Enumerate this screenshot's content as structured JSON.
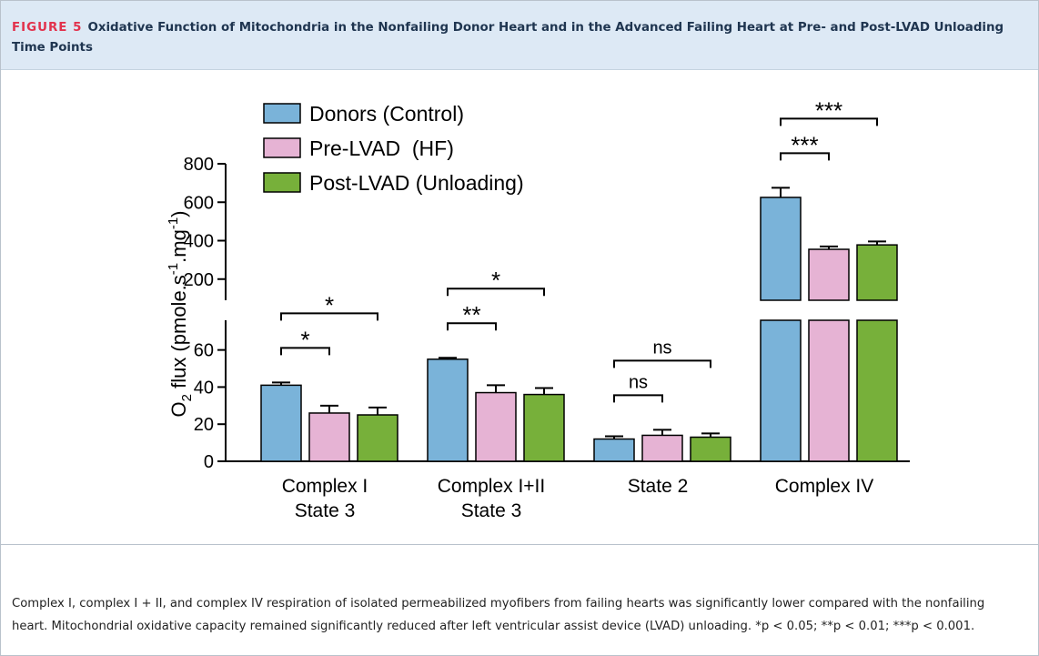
{
  "header": {
    "figure_label": "FIGURE 5",
    "title": "Oxidative Function of Mitochondria in the Nonfailing Donor Heart and in the Advanced Failing Heart at Pre- and Post-LVAD Unloading Time Points"
  },
  "chart_data": {
    "type": "bar",
    "ylabel": [
      "O",
      "2",
      " flux (pmole.s",
      "-1",
      ".mg",
      "-1",
      ")"
    ],
    "categories": [
      [
        "Complex I",
        "State 3"
      ],
      [
        "Complex I+II",
        "State 3"
      ],
      [
        "State 2"
      ],
      [
        "Complex IV"
      ]
    ],
    "series": [
      {
        "name": "Donors (Control)",
        "color": "#7ab3d9",
        "values": [
          41,
          55,
          12,
          625
        ],
        "errors": [
          1.5,
          0.8,
          1.5,
          50
        ]
      },
      {
        "name": "Pre-LVAD  (HF)",
        "color": "#e6b3d4",
        "values": [
          26,
          37,
          14,
          355
        ],
        "errors": [
          4,
          4,
          3,
          15
        ]
      },
      {
        "name": "Post-LVAD (Unloading)",
        "color": "#77b03a",
        "values": [
          25,
          36,
          13,
          378
        ],
        "errors": [
          4,
          3.5,
          2,
          18
        ]
      }
    ],
    "axis_segments": [
      {
        "ylim": [
          0,
          76
        ],
        "yticks": [
          0,
          20,
          40,
          60
        ]
      },
      {
        "ylim": [
          90,
          800
        ],
        "yticks": [
          200,
          400,
          600,
          800
        ]
      }
    ],
    "annotations": [
      {
        "text": "*",
        "category": 0,
        "series": [
          0,
          1
        ]
      },
      {
        "text": "*",
        "category": 0,
        "series": [
          0,
          2
        ]
      },
      {
        "text": "**",
        "category": 1,
        "series": [
          0,
          1
        ]
      },
      {
        "text": "*",
        "category": 1,
        "series": [
          0,
          2
        ]
      },
      {
        "text": "ns",
        "category": 2,
        "series": [
          0,
          1
        ]
      },
      {
        "text": "ns",
        "category": 2,
        "series": [
          0,
          2
        ]
      },
      {
        "text": "***",
        "category": 3,
        "series": [
          0,
          1
        ]
      },
      {
        "text": "***",
        "category": 3,
        "series": [
          0,
          2
        ]
      }
    ]
  },
  "caption": "Complex I, complex I + II, and complex IV respiration of isolated permeabilized myofibers from failing hearts was significantly lower compared with the nonfailing heart. Mitochondrial oxidative capacity remained significantly reduced after left ventricular assist device (LVAD) unloading. *p < 0.05; **p < 0.01; ***p < 0.001."
}
